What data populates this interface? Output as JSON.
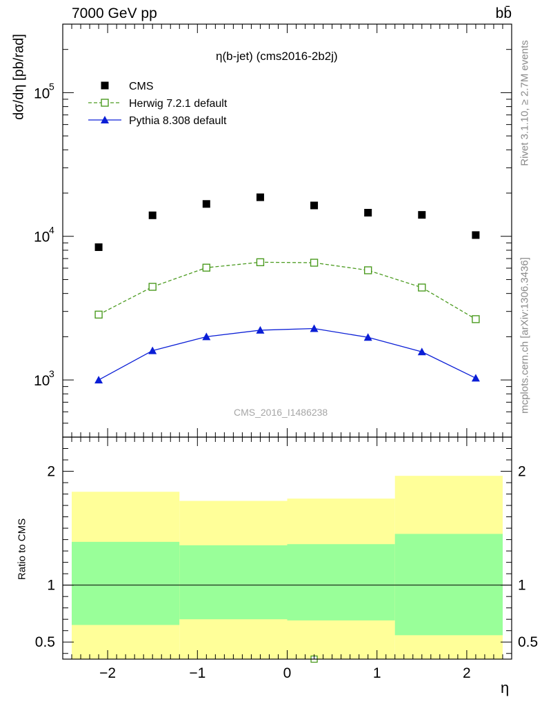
{
  "header": {
    "left": "7000 GeV pp",
    "right": "bb̄"
  },
  "plot_title": "η(b-jet) (cms2016-2b2j)",
  "watermark": "CMS_2016_I1486238",
  "side_labels": {
    "rivet": "Rivet 3.1.10, ≥ 2.7M events",
    "source": "mcplots.cern.ch [arXiv:1306.3436]"
  },
  "chart_data": [
    {
      "type": "scatter",
      "panel": "main",
      "ylabel": "dσ/dη [pb/rad]",
      "xlim": [
        -2.5,
        2.5
      ],
      "ylim": [
        400,
        300000
      ],
      "yscale": "log",
      "y_ticks": [
        {
          "value": 1000,
          "base": "10",
          "exp": "3"
        },
        {
          "value": 10000,
          "base": "10",
          "exp": "4"
        },
        {
          "value": 100000,
          "base": "10",
          "exp": "5"
        }
      ],
      "legend_position": "top-left",
      "x": [
        -2.1,
        -1.5,
        -0.9,
        -0.3,
        0.3,
        0.9,
        1.5,
        2.1
      ],
      "series": [
        {
          "name": "CMS",
          "style": "square-filled",
          "color": "#000000",
          "values": [
            8400,
            14000,
            16800,
            18700,
            16400,
            14600,
            14100,
            10200
          ]
        },
        {
          "name": "Herwig 7.2.1 default",
          "style": "square-open-dashed",
          "color": "#4a9a1e",
          "values": [
            2850,
            4450,
            6050,
            6600,
            6550,
            5800,
            4400,
            2650
          ]
        },
        {
          "name": "Pythia 8.308 default",
          "style": "triangle-filled",
          "color": "#0a1ed6",
          "values": [
            1000,
            1600,
            2000,
            2220,
            2280,
            1980,
            1570,
            1030
          ]
        }
      ]
    },
    {
      "type": "area",
      "panel": "ratio",
      "xlabel": "η",
      "ylabel": "Ratio to CMS",
      "xlim": [
        -2.5,
        2.5
      ],
      "ylim": [
        0.35,
        2.3
      ],
      "x_ticks": [
        -2,
        -1,
        0,
        1,
        2
      ],
      "x_tick_labels": [
        "−2",
        "−1",
        "0",
        "1",
        "2"
      ],
      "y_ticks": [
        0.5,
        1,
        2
      ],
      "y_tick_labels": [
        "0.5",
        "1",
        "2"
      ],
      "reference_line": 1,
      "bins": [
        {
          "x_low": -2.4,
          "x_high": -1.2,
          "stat_low": 0.65,
          "stat_high": 1.38,
          "total_low": 0.33,
          "total_high": 1.82
        },
        {
          "x_low": -1.2,
          "x_high": 0.0,
          "stat_low": 0.7,
          "stat_high": 1.35,
          "total_low": 0.33,
          "total_high": 1.74
        },
        {
          "x_low": 0.0,
          "x_high": 1.2,
          "stat_low": 0.69,
          "stat_high": 1.36,
          "total_low": 0.33,
          "total_high": 1.76
        },
        {
          "x_low": 1.2,
          "x_high": 2.4,
          "stat_low": 0.56,
          "stat_high": 1.45,
          "total_low": 0.33,
          "total_high": 1.96
        }
      ],
      "band_colors": {
        "stat": "#99ff99",
        "total": "#ffff99"
      },
      "herwig_outlier": {
        "x": 0.3,
        "value": 0.35,
        "color": "#4a9a1e"
      }
    }
  ]
}
